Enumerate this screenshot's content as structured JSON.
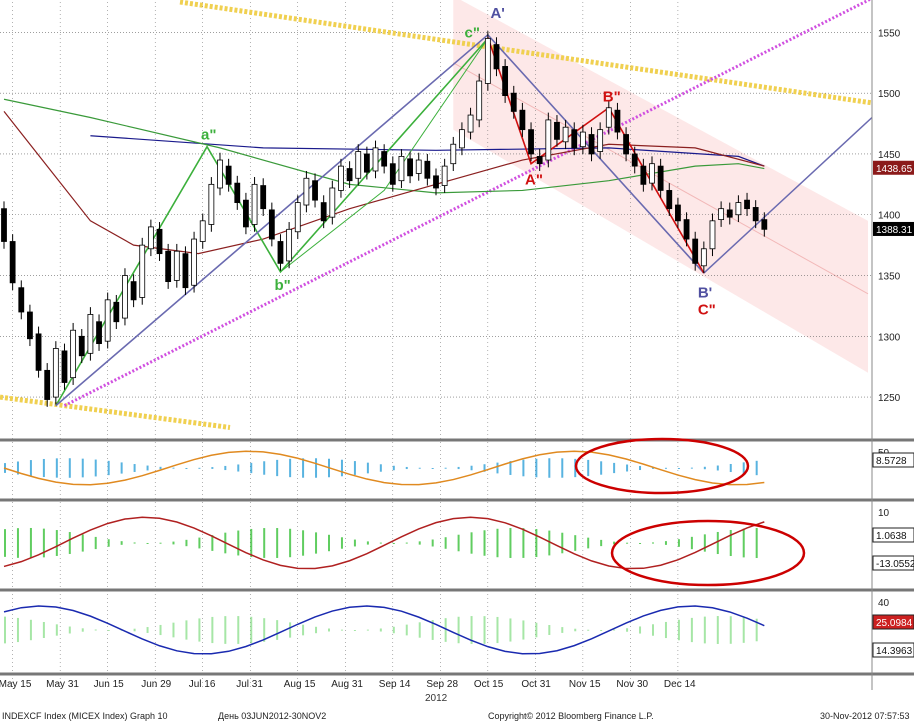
{
  "footer": {
    "left": "INDEXCF Index (MICEX Index) Graph 10",
    "range": "День 03JUN2012-30NOV2",
    "copyright": "Copyright© 2012 Bloomberg Finance L.P.",
    "timestamp": "30-Nov-2012 07:57:53"
  },
  "year_label": "2012",
  "colors": {
    "background": "#ffffff",
    "grid": "#666666",
    "up_candle": "#ffffff",
    "down_candle": "#000000",
    "ma_blue": "#1a1a8c",
    "ma_green": "#3a9a3a",
    "ma_red": "#8b2020",
    "wave_green": "#3cb03c",
    "wave_blue": "#6a6ab0",
    "wave_red": "#d01010",
    "trend_yellow": "#f0d050",
    "trend_magenta": "#d050e0",
    "channel_fill": "#fde2e2",
    "highlight_ellipse": "#cc0000"
  },
  "chart_data": {
    "type": "candlestick",
    "x_tick_labels": [
      "May 15",
      "May 31",
      "Jun 15",
      "Jun 29",
      "Jul 16",
      "Jul 31",
      "Aug 15",
      "Aug 31",
      "Sep 14",
      "Sep 28",
      "Oct 15",
      "Oct 31",
      "Nov 15",
      "Nov 30",
      "Dec 14"
    ],
    "y_ticks": [
      1250,
      1300,
      1350,
      1400,
      1450,
      1500,
      1550
    ],
    "ylim": [
      1218,
      1575
    ],
    "last_price_labels": [
      {
        "value": 1438.65,
        "label": "1438.65",
        "color": "#8b1a1a"
      },
      {
        "value": 1388.31,
        "label": "1388.31",
        "color": "#000000"
      }
    ],
    "price_series": [
      {
        "d": 0,
        "o": 1405,
        "c": 1378
      },
      {
        "d": 2,
        "o": 1378,
        "c": 1344
      },
      {
        "d": 4,
        "o": 1340,
        "c": 1320
      },
      {
        "d": 6,
        "o": 1320,
        "c": 1298
      },
      {
        "d": 8,
        "o": 1302,
        "c": 1272
      },
      {
        "d": 10,
        "o": 1272,
        "c": 1248
      },
      {
        "d": 12,
        "o": 1250,
        "c": 1290
      },
      {
        "d": 14,
        "o": 1288,
        "c": 1262
      },
      {
        "d": 16,
        "o": 1266,
        "c": 1305
      },
      {
        "d": 18,
        "o": 1300,
        "c": 1284
      },
      {
        "d": 20,
        "o": 1286,
        "c": 1318
      },
      {
        "d": 22,
        "o": 1312,
        "c": 1294
      },
      {
        "d": 24,
        "o": 1296,
        "c": 1330
      },
      {
        "d": 26,
        "o": 1328,
        "c": 1312
      },
      {
        "d": 28,
        "o": 1315,
        "c": 1350
      },
      {
        "d": 30,
        "o": 1345,
        "c": 1330
      },
      {
        "d": 32,
        "o": 1332,
        "c": 1375
      },
      {
        "d": 34,
        "o": 1372,
        "c": 1390
      },
      {
        "d": 36,
        "o": 1388,
        "c": 1368
      },
      {
        "d": 38,
        "o": 1370,
        "c": 1345
      },
      {
        "d": 40,
        "o": 1346,
        "c": 1370
      },
      {
        "d": 42,
        "o": 1368,
        "c": 1340
      },
      {
        "d": 44,
        "o": 1342,
        "c": 1380
      },
      {
        "d": 46,
        "o": 1378,
        "c": 1395
      },
      {
        "d": 48,
        "o": 1392,
        "c": 1425
      },
      {
        "d": 50,
        "o": 1422,
        "c": 1445
      },
      {
        "d": 52,
        "o": 1440,
        "c": 1425
      },
      {
        "d": 54,
        "o": 1426,
        "c": 1410
      },
      {
        "d": 56,
        "o": 1412,
        "c": 1390
      },
      {
        "d": 58,
        "o": 1392,
        "c": 1425
      },
      {
        "d": 60,
        "o": 1424,
        "c": 1405
      },
      {
        "d": 62,
        "o": 1404,
        "c": 1380
      },
      {
        "d": 64,
        "o": 1378,
        "c": 1360
      },
      {
        "d": 66,
        "o": 1362,
        "c": 1388
      },
      {
        "d": 68,
        "o": 1386,
        "c": 1410
      },
      {
        "d": 70,
        "o": 1408,
        "c": 1430
      },
      {
        "d": 72,
        "o": 1428,
        "c": 1412
      },
      {
        "d": 74,
        "o": 1410,
        "c": 1395
      },
      {
        "d": 76,
        "o": 1398,
        "c": 1422
      },
      {
        "d": 78,
        "o": 1420,
        "c": 1440
      },
      {
        "d": 80,
        "o": 1438,
        "c": 1428
      },
      {
        "d": 82,
        "o": 1430,
        "c": 1452
      },
      {
        "d": 84,
        "o": 1450,
        "c": 1435
      },
      {
        "d": 86,
        "o": 1436,
        "c": 1455
      },
      {
        "d": 88,
        "o": 1452,
        "c": 1440
      },
      {
        "d": 90,
        "o": 1442,
        "c": 1425
      },
      {
        "d": 92,
        "o": 1428,
        "c": 1448
      },
      {
        "d": 94,
        "o": 1446,
        "c": 1432
      },
      {
        "d": 96,
        "o": 1434,
        "c": 1445
      },
      {
        "d": 98,
        "o": 1444,
        "c": 1430
      },
      {
        "d": 100,
        "o": 1432,
        "c": 1422
      },
      {
        "d": 102,
        "o": 1424,
        "c": 1440
      },
      {
        "d": 104,
        "o": 1442,
        "c": 1458
      },
      {
        "d": 106,
        "o": 1455,
        "c": 1470
      },
      {
        "d": 108,
        "o": 1468,
        "c": 1482
      },
      {
        "d": 110,
        "o": 1478,
        "c": 1510
      },
      {
        "d": 112,
        "o": 1508,
        "c": 1545
      },
      {
        "d": 114,
        "o": 1540,
        "c": 1520
      },
      {
        "d": 116,
        "o": 1522,
        "c": 1498
      },
      {
        "d": 118,
        "o": 1500,
        "c": 1485
      },
      {
        "d": 120,
        "o": 1486,
        "c": 1470
      },
      {
        "d": 122,
        "o": 1470,
        "c": 1450
      },
      {
        "d": 124,
        "o": 1448,
        "c": 1442
      },
      {
        "d": 126,
        "o": 1445,
        "c": 1478
      },
      {
        "d": 128,
        "o": 1476,
        "c": 1462
      },
      {
        "d": 130,
        "o": 1460,
        "c": 1472
      },
      {
        "d": 132,
        "o": 1470,
        "c": 1455
      },
      {
        "d": 134,
        "o": 1456,
        "c": 1468
      },
      {
        "d": 136,
        "o": 1466,
        "c": 1450
      },
      {
        "d": 138,
        "o": 1452,
        "c": 1470
      },
      {
        "d": 140,
        "o": 1472,
        "c": 1488
      },
      {
        "d": 142,
        "o": 1486,
        "c": 1468
      },
      {
        "d": 144,
        "o": 1466,
        "c": 1450
      },
      {
        "d": 146,
        "o": 1450,
        "c": 1440
      },
      {
        "d": 148,
        "o": 1440,
        "c": 1425
      },
      {
        "d": 150,
        "o": 1426,
        "c": 1442
      },
      {
        "d": 152,
        "o": 1440,
        "c": 1420
      },
      {
        "d": 154,
        "o": 1420,
        "c": 1405
      },
      {
        "d": 156,
        "o": 1408,
        "c": 1395
      },
      {
        "d": 158,
        "o": 1396,
        "c": 1380
      },
      {
        "d": 160,
        "o": 1380,
        "c": 1360
      },
      {
        "d": 162,
        "o": 1358,
        "c": 1372
      },
      {
        "d": 164,
        "o": 1372,
        "c": 1395
      },
      {
        "d": 166,
        "o": 1396,
        "c": 1405
      },
      {
        "d": 168,
        "o": 1404,
        "c": 1398
      },
      {
        "d": 170,
        "o": 1400,
        "c": 1410
      },
      {
        "d": 172,
        "o": 1412,
        "c": 1405
      },
      {
        "d": 174,
        "o": 1406,
        "c": 1395
      },
      {
        "d": 176,
        "o": 1396,
        "c": 1388
      }
    ],
    "moving_averages": [
      {
        "color": "#1a1a8c",
        "points": [
          [
            20,
            1465
          ],
          [
            60,
            1455
          ],
          [
            100,
            1453
          ],
          [
            140,
            1455
          ],
          [
            170,
            1448
          ],
          [
            176,
            1440
          ]
        ]
      },
      {
        "color": "#3a9a3a",
        "points": [
          [
            0,
            1495
          ],
          [
            20,
            1480
          ],
          [
            50,
            1455
          ],
          [
            80,
            1425
          ],
          [
            100,
            1418
          ],
          [
            120,
            1420
          ],
          [
            140,
            1428
          ],
          [
            160,
            1440
          ],
          [
            170,
            1442
          ],
          [
            176,
            1438
          ]
        ]
      },
      {
        "color": "#8b2020",
        "points": [
          [
            0,
            1485
          ],
          [
            10,
            1440
          ],
          [
            20,
            1395
          ],
          [
            30,
            1375
          ],
          [
            45,
            1368
          ],
          [
            60,
            1380
          ],
          [
            80,
            1405
          ],
          [
            100,
            1425
          ],
          [
            120,
            1445
          ],
          [
            140,
            1458
          ],
          [
            160,
            1455
          ],
          [
            176,
            1440
          ]
        ]
      }
    ],
    "wave_labels": [
      {
        "text": "a\"",
        "d": 47,
        "v": 1462,
        "color": "#3cb03c"
      },
      {
        "text": "b\"",
        "d": 64,
        "v": 1338,
        "color": "#3cb03c"
      },
      {
        "text": "c\"",
        "d": 108,
        "v": 1546,
        "color": "#3cb03c"
      },
      {
        "text": "A'",
        "d": 114,
        "v": 1562,
        "color": "#5050a0"
      },
      {
        "text": "A\"",
        "d": 122,
        "v": 1425,
        "color": "#d01010"
      },
      {
        "text": "B\"",
        "d": 140,
        "v": 1493,
        "color": "#d01010"
      },
      {
        "text": "B'",
        "d": 162,
        "v": 1332,
        "color": "#5050a0"
      },
      {
        "text": "C\"",
        "d": 162,
        "v": 1318,
        "color": "#d01010"
      }
    ],
    "oscillators": [
      {
        "ticks": [
          50
        ],
        "last_label": "8.5728"
      },
      {
        "ticks": [
          10
        ],
        "last_labels": [
          "1.0638",
          "-13.0552"
        ]
      },
      {
        "ticks": [
          40
        ],
        "last_labels": [
          "25.0984",
          "14.3963"
        ]
      }
    ]
  }
}
